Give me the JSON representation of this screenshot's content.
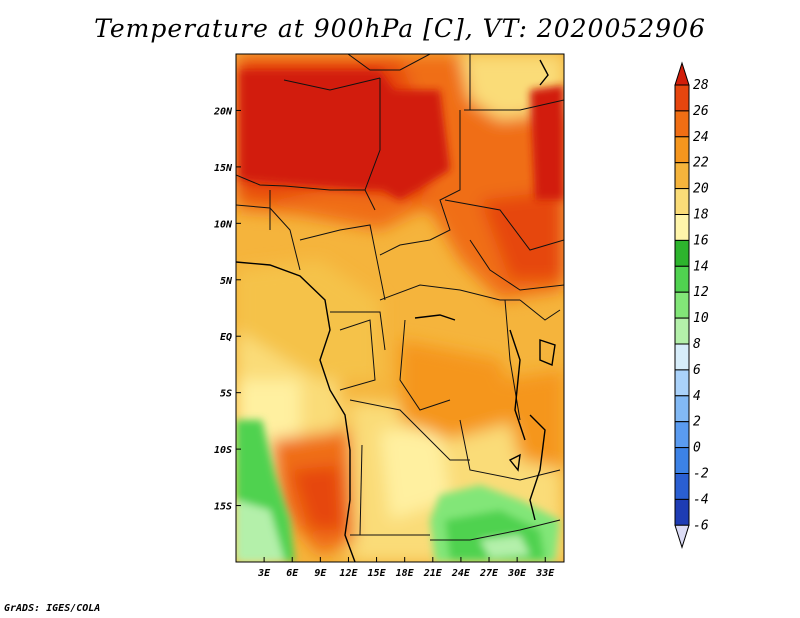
{
  "title": "Temperature at 900hPa [C], VT: 2020052906",
  "credit": "GrADS: IGES/COLA",
  "map": {
    "variable": "Temperature at 900hPa",
    "units": "C",
    "valid_time": "2020052906",
    "lon_range": [
      0,
      35
    ],
    "lat_range": [
      -20,
      25
    ],
    "lon_ticks": [
      {
        "value": 3,
        "label": "3E"
      },
      {
        "value": 6,
        "label": "6E"
      },
      {
        "value": 9,
        "label": "9E"
      },
      {
        "value": 12,
        "label": "12E"
      },
      {
        "value": 15,
        "label": "15E"
      },
      {
        "value": 18,
        "label": "18E"
      },
      {
        "value": 21,
        "label": "21E"
      },
      {
        "value": 24,
        "label": "24E"
      },
      {
        "value": 27,
        "label": "27E"
      },
      {
        "value": 30,
        "label": "30E"
      },
      {
        "value": 33,
        "label": "33E"
      }
    ],
    "lat_ticks": [
      {
        "value": 20,
        "label": "20N"
      },
      {
        "value": 15,
        "label": "15N"
      },
      {
        "value": 10,
        "label": "10N"
      },
      {
        "value": 5,
        "label": "5N"
      },
      {
        "value": 0,
        "label": "EQ"
      },
      {
        "value": -5,
        "label": "5S"
      },
      {
        "value": -10,
        "label": "10S"
      },
      {
        "value": -15,
        "label": "15S"
      }
    ]
  },
  "colorbar": {
    "levels": [
      "28",
      "26",
      "24",
      "22",
      "20",
      "18",
      "16",
      "14",
      "12",
      "10",
      "8",
      "6",
      "4",
      "2",
      "0",
      "-2",
      "-4",
      "-6"
    ],
    "colors": [
      "#0a0a6e",
      "#1e3cb4",
      "#2a5fd2",
      "#3c82e6",
      "#5a9bf0",
      "#82b9f5",
      "#aad2fa",
      "#d7edfa",
      "#b4f0aa",
      "#82e678",
      "#50d250",
      "#2db42d",
      "#fff5aa",
      "#fadc78",
      "#f5b43c",
      "#f5961e",
      "#f06e14",
      "#e6460f",
      "#d21e0a"
    ]
  }
}
